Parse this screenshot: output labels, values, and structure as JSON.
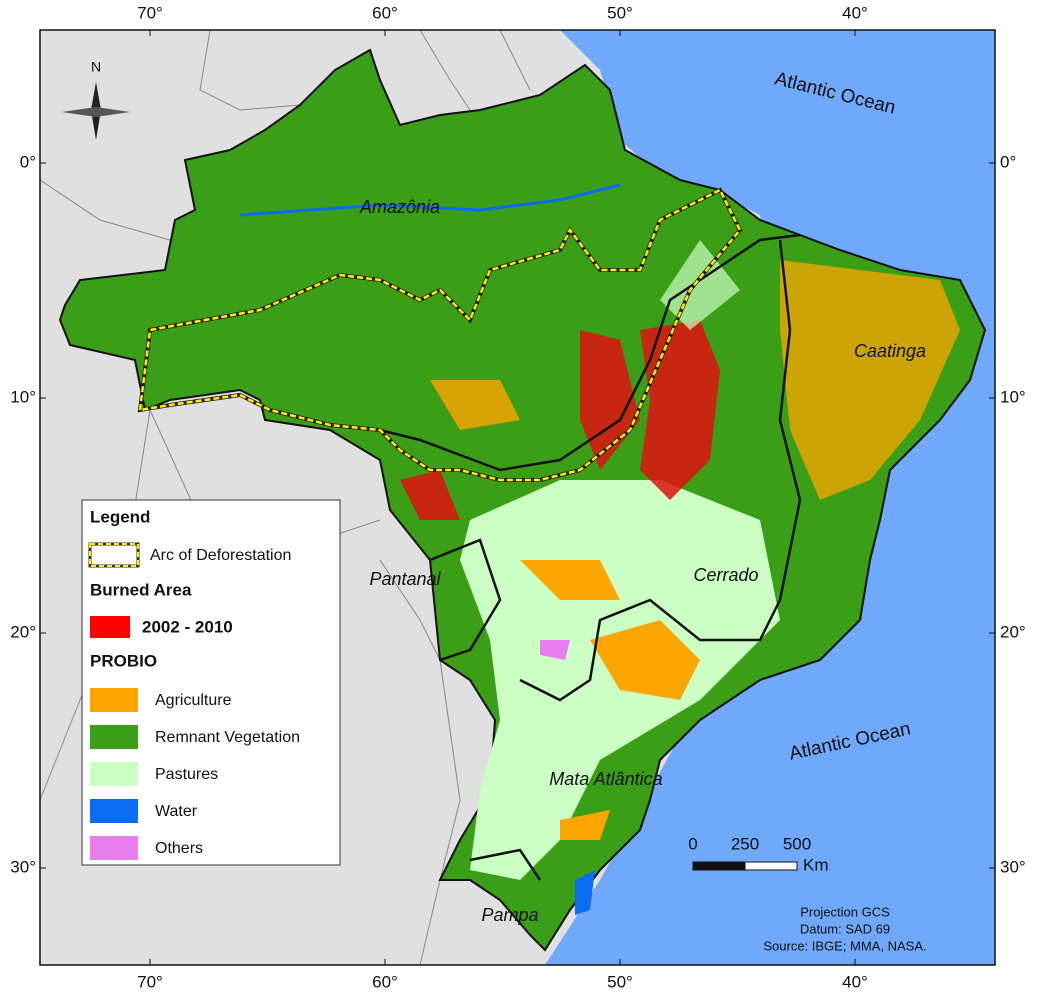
{
  "map": {
    "graticule": {
      "longitudes": [
        "70°",
        "60°",
        "50°",
        "40°"
      ],
      "latitudes": [
        "0°",
        "10°",
        "20°",
        "30°"
      ]
    },
    "north": "N",
    "ocean_labels": [
      "Atlantic Ocean",
      "Atlantic Ocean"
    ],
    "region_labels": [
      "Amazônia",
      "Caatinga",
      "Cerrado",
      "Pantanal",
      "Mata Atlântica",
      "Pampa"
    ],
    "legend": {
      "title": "Legend",
      "arc": "Arc of Deforestation",
      "burned_area": {
        "title": "Burned Area",
        "items": [
          {
            "label": "2002 - 2010",
            "color": "#ff0000"
          }
        ]
      },
      "probio": {
        "title": "PROBIO",
        "items": [
          {
            "label": "Agriculture",
            "color": "#ffa500"
          },
          {
            "label": "Remnant Vegetation",
            "color": "#3a9e16"
          },
          {
            "label": "Pastures",
            "color": "#ccffc4"
          },
          {
            "label": "Water",
            "color": "#0a6cf0"
          },
          {
            "label": "Others",
            "color": "#e67ef0"
          }
        ]
      }
    },
    "scale_bar": {
      "ticks": [
        "0",
        "250",
        "500"
      ],
      "unit": "Km"
    },
    "credits": [
      "Projection GCS",
      "Datum: SAD 69",
      "Source: IBGE; MMA, NASA."
    ]
  }
}
